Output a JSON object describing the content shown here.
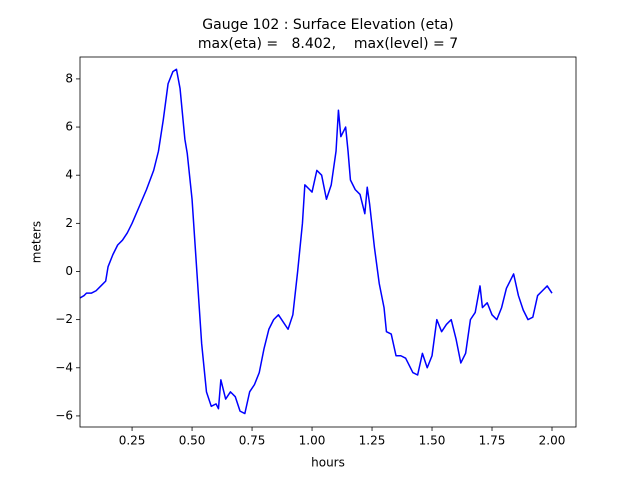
{
  "chart_data": {
    "type": "line",
    "title": "Gauge 102 : Surface Elevation (eta)",
    "subtitle": "max(eta) =   8.402,    max(level) = 7",
    "x_label": "hours",
    "y_label": "meters",
    "x": [
      0.033,
      0.05,
      0.06,
      0.08,
      0.1,
      0.12,
      0.14,
      0.15,
      0.17,
      0.19,
      0.21,
      0.23,
      0.25,
      0.28,
      0.31,
      0.34,
      0.36,
      0.38,
      0.4,
      0.42,
      0.435,
      0.45,
      0.47,
      0.48,
      0.5,
      0.52,
      0.54,
      0.56,
      0.58,
      0.6,
      0.61,
      0.62,
      0.64,
      0.66,
      0.68,
      0.7,
      0.72,
      0.74,
      0.76,
      0.78,
      0.8,
      0.82,
      0.84,
      0.86,
      0.88,
      0.9,
      0.92,
      0.94,
      0.96,
      0.97,
      0.99,
      1.0,
      1.02,
      1.04,
      1.06,
      1.08,
      1.1,
      1.11,
      1.12,
      1.14,
      1.15,
      1.16,
      1.18,
      1.2,
      1.22,
      1.23,
      1.24,
      1.26,
      1.28,
      1.3,
      1.31,
      1.33,
      1.35,
      1.37,
      1.39,
      1.4,
      1.42,
      1.44,
      1.46,
      1.48,
      1.5,
      1.52,
      1.54,
      1.56,
      1.58,
      1.6,
      1.62,
      1.64,
      1.66,
      1.68,
      1.7,
      1.71,
      1.73,
      1.75,
      1.77,
      1.79,
      1.81,
      1.84,
      1.86,
      1.88,
      1.9,
      1.92,
      1.94,
      1.96,
      1.98,
      2.0
    ],
    "series": [
      {
        "name": "eta",
        "color": "#0000ff",
        "values": [
          -1.1,
          -1.0,
          -0.9,
          -0.9,
          -0.8,
          -0.6,
          -0.4,
          0.2,
          0.7,
          1.1,
          1.3,
          1.6,
          2.0,
          2.7,
          3.4,
          4.2,
          5.0,
          6.3,
          7.8,
          8.3,
          8.402,
          7.6,
          5.5,
          4.9,
          3.0,
          0.0,
          -3.0,
          -5.0,
          -5.6,
          -5.5,
          -5.7,
          -4.5,
          -5.3,
          -5.0,
          -5.2,
          -5.8,
          -5.9,
          -5.0,
          -4.7,
          -4.2,
          -3.2,
          -2.4,
          -2.0,
          -1.8,
          -2.1,
          -2.4,
          -1.8,
          0.0,
          2.0,
          3.6,
          3.4,
          3.3,
          4.2,
          4.0,
          3.0,
          3.6,
          5.0,
          6.7,
          5.6,
          6.0,
          5.0,
          3.8,
          3.4,
          3.2,
          2.4,
          3.5,
          2.8,
          1.0,
          -0.5,
          -1.5,
          -2.5,
          -2.6,
          -3.5,
          -3.5,
          -3.6,
          -3.8,
          -4.2,
          -4.3,
          -3.4,
          -4.0,
          -3.5,
          -2.0,
          -2.5,
          -2.2,
          -2.0,
          -2.8,
          -3.8,
          -3.4,
          -2.0,
          -1.7,
          -0.6,
          -1.5,
          -1.3,
          -1.8,
          -2.0,
          -1.5,
          -0.7,
          -0.1,
          -1.0,
          -1.6,
          -2.0,
          -1.9,
          -1.0,
          -0.8,
          -0.6,
          -0.9
        ]
      }
    ],
    "xlim": [
      0.033,
      2.1
    ],
    "ylim": [
      -6.46,
      8.91
    ],
    "xticks": [
      0.25,
      {
        "value": 0.5,
        "label": "0.50"
      },
      0.75,
      {
        "value": 1.0,
        "label": "1.00"
      },
      1.25,
      {
        "value": 1.5,
        "label": "1.50"
      },
      1.75,
      {
        "value": 2.0,
        "label": "2.00"
      }
    ],
    "yticks": [
      {
        "value": -6,
        "label": "−6"
      },
      {
        "value": -4,
        "label": "−4"
      },
      {
        "value": -2,
        "label": "−2"
      },
      0,
      2,
      4,
      6,
      8
    ]
  }
}
